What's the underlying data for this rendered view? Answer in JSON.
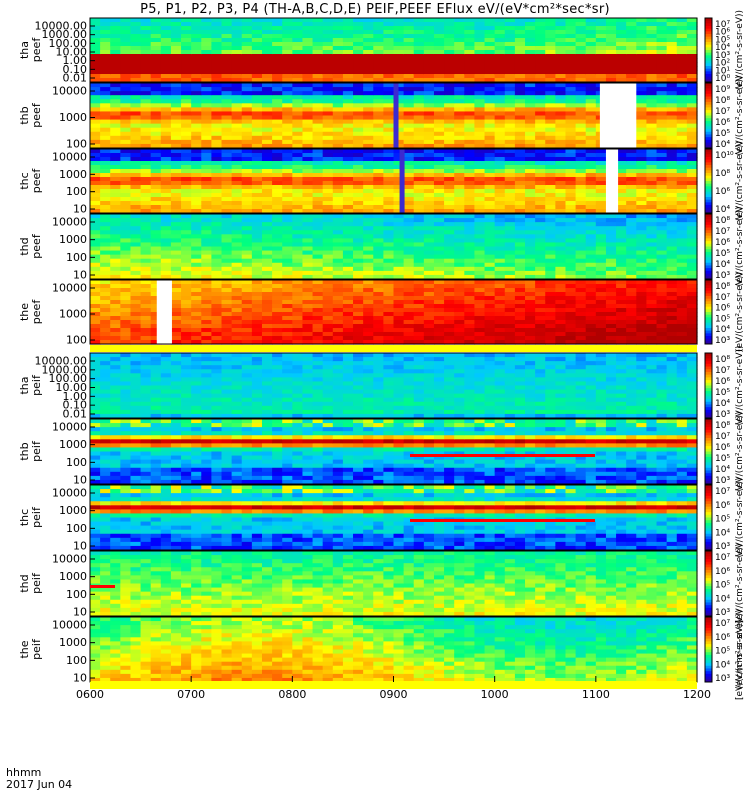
{
  "title": "P5, P1, P2, P3, P4 (TH-A,B,C,D,E) PEIF,PEEF EFlux eV/(eV*cm²*sec*sr)",
  "time_label": {
    "line1": "hhmm",
    "line2": "2017 Jun 04"
  },
  "colorbar_unit": "[eV/(cm²-s-sr-eV)]",
  "chart_data": {
    "type": "heatmap",
    "title": "P5, P1, P2, P3, P4 (TH-A,B,C,D,E) PEIF,PEEF EFlux eV/(eV*cm²*sec*sr)",
    "xlabel": "hhmm",
    "x_ticks": [
      "0600",
      "0700",
      "0800",
      "0900",
      "1000",
      "1100",
      "1200"
    ],
    "xlim": [
      "0600",
      "1200"
    ],
    "date": "2017 Jun 04",
    "y_scale": "log",
    "panels": [
      {
        "probe": "tha",
        "product": "peef",
        "yticks": [
          "10000.00",
          "1000.00",
          "100.00",
          "10.00",
          "1.00",
          "0.10",
          "0.01"
        ],
        "cbar_ticks": [
          "10⁷",
          "10⁶",
          "10⁵",
          "10⁴",
          "10³",
          "10²",
          "10¹",
          "10⁰"
        ],
        "cbar_unit": "(eV/(cm²-s-sr-eV))"
      },
      {
        "probe": "thb",
        "product": "peef",
        "yticks": [
          "10000",
          "1000",
          "100"
        ],
        "cbar_ticks": [
          "10⁹",
          "10⁸",
          "10⁷",
          "10⁶",
          "10⁵",
          "10⁴"
        ],
        "cbar_unit": "(eV/(cm²-s-sr-eV))"
      },
      {
        "probe": "thc",
        "product": "peef",
        "yticks": [
          "10000",
          "1000",
          "100",
          "10"
        ],
        "cbar_ticks": [
          "10¹⁰",
          "10⁸",
          "10⁶",
          "10⁴"
        ],
        "cbar_unit": "(eV/(cm²-s-sr-eV))"
      },
      {
        "probe": "thd",
        "product": "peef",
        "yticks": [
          "10000",
          "1000",
          "100",
          "10"
        ],
        "cbar_ticks": [
          "10⁸",
          "10⁷",
          "10⁶",
          "10⁵",
          "10⁴",
          "10³"
        ],
        "cbar_unit": "(eV/(cm²-s-sr-eV))"
      },
      {
        "probe": "the",
        "product": "peef",
        "yticks": [
          "10000",
          "1000",
          "100"
        ],
        "cbar_ticks": [
          "10⁸",
          "10⁷",
          "10⁶",
          "10⁵",
          "10⁴",
          "10³"
        ],
        "cbar_unit": "(eV/(cm²-s-sr-eV))"
      },
      {
        "probe": "tha",
        "product": "peif",
        "yticks": [
          "10000.00",
          "1000.00",
          "100.00",
          "10.00",
          "1.00",
          "0.10",
          "0.01"
        ],
        "cbar_ticks": [
          "10⁸",
          "10⁷",
          "10⁶",
          "10⁵",
          "10⁴",
          "10³"
        ],
        "cbar_unit": "(eV/(cm²-s-sr-eV))"
      },
      {
        "probe": "thb",
        "product": "peif",
        "yticks": [
          "10000",
          "1000",
          "100",
          "10"
        ],
        "cbar_ticks": [
          "10⁸",
          "10⁷",
          "10⁶",
          "10⁵",
          "10⁴",
          "10³"
        ],
        "cbar_unit": "(eV/(cm²-s-sr-eV))"
      },
      {
        "probe": "thc",
        "product": "peif",
        "yticks": [
          "10000",
          "1000",
          "100",
          "10"
        ],
        "cbar_ticks": [
          "10⁷",
          "10⁶",
          "10⁵",
          "10⁴",
          "10³"
        ],
        "cbar_unit": "(eV/(cm²-s-sr-eV))"
      },
      {
        "probe": "thd",
        "product": "peif",
        "yticks": [
          "10000",
          "1000",
          "100",
          "10"
        ],
        "cbar_ticks": [
          "10⁷",
          "10⁶",
          "10⁵",
          "10⁴",
          "10³"
        ],
        "cbar_unit": "(eV/(cm²-s-sr-eV))"
      },
      {
        "probe": "the",
        "product": "peif",
        "yticks": [
          "10000",
          "1000",
          "100",
          "10"
        ],
        "cbar_ticks": [
          "10⁷",
          "10⁶",
          "10⁵",
          "10⁴",
          "10³"
        ],
        "cbar_unit": "(eV/(cm²-s-sr-eV))"
      }
    ],
    "grid": false,
    "colormap": [
      "#3a0080",
      "#0000ff",
      "#00c8ff",
      "#00ff80",
      "#ffff00",
      "#ff8000",
      "#ff0000",
      "#b00000"
    ]
  }
}
